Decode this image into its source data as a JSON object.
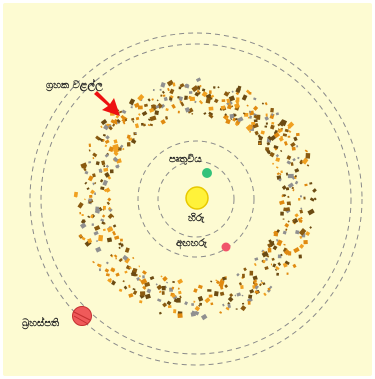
{
  "labels": {
    "sun": "හිරු",
    "earth": "පෘතුවිය",
    "mars": "අඟහරු",
    "jupiter": "බ්‍රහස්පති",
    "asteroid_belt": "ග්‍රහක වළල්ල"
  },
  "colors": {
    "background": "#fdfbd2",
    "orbit": "#8a8a8a",
    "sun": "#fff23a",
    "earth": "#33c27a",
    "mars": "#f0546a",
    "jupiter": "#ef5a5a",
    "arrow": "#ee1111",
    "asteroid_colors": [
      "#8a5a10",
      "#f0a020",
      "#909090",
      "#6b4a12",
      "#e08a10"
    ]
  }
}
